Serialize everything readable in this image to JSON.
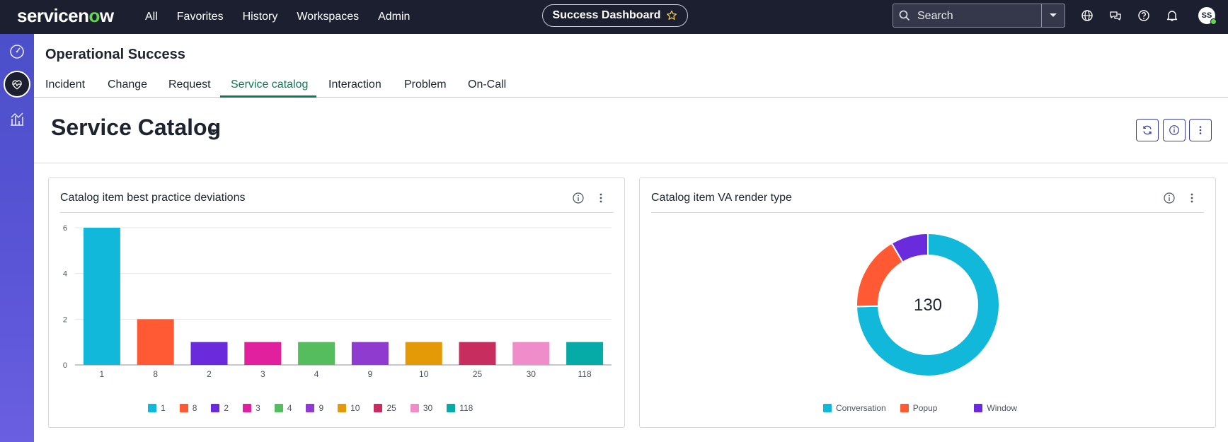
{
  "topbar": {
    "logo_text_a": "servicen",
    "logo_text_o": "o",
    "logo_text_b": "w",
    "nav": [
      "All",
      "Favorites",
      "History",
      "Workspaces",
      "Admin"
    ],
    "pill_label": "Success Dashboard",
    "search_placeholder": "Search",
    "avatar_initials": "SS"
  },
  "header": {
    "app_title": "Operational Success",
    "tabs": [
      "Incident",
      "Change",
      "Request",
      "Service catalog",
      "Interaction",
      "Problem",
      "On-Call"
    ],
    "active_tab": "Service catalog",
    "dashboard_title": "Service Catalog"
  },
  "cards": {
    "left_title": "Catalog item best practice deviations",
    "right_title": "Catalog item VA render type"
  },
  "colors": {
    "accent_green": "#0f7a52",
    "nav_bg": "#1c1f2f",
    "rail_gradient": [
      "#4b4fc9",
      "#6a5fe0"
    ]
  },
  "chart_data": [
    {
      "type": "bar",
      "categories": [
        "1",
        "8",
        "2",
        "3",
        "4",
        "9",
        "10",
        "25",
        "30",
        "118"
      ],
      "values": [
        6,
        2,
        1,
        1,
        1,
        1,
        1,
        1,
        1,
        1
      ],
      "colors": [
        "#12b8d9",
        "#ff5a33",
        "#6a2bdc",
        "#e0209c",
        "#55bd5e",
        "#8f3bd0",
        "#e39a06",
        "#c72d5e",
        "#ee8dc9",
        "#06aaa6"
      ],
      "ylim": [
        0,
        6
      ],
      "yticks": [
        0,
        2,
        4,
        6
      ],
      "grid": true,
      "legend": "bottom",
      "legend_labels": [
        "1",
        "8",
        "2",
        "3",
        "4",
        "9",
        "10",
        "25",
        "30",
        "118"
      ]
    },
    {
      "type": "pie",
      "style": "donut",
      "center_label": "130",
      "slices": [
        {
          "label": "Conversation",
          "value": 97,
          "color": "#12b8d9"
        },
        {
          "label": "Popup",
          "value": 22,
          "color": "#ff5a33"
        },
        {
          "label": "Window",
          "value": 11,
          "color": "#6a2bdc"
        }
      ],
      "legend": "bottom"
    }
  ]
}
